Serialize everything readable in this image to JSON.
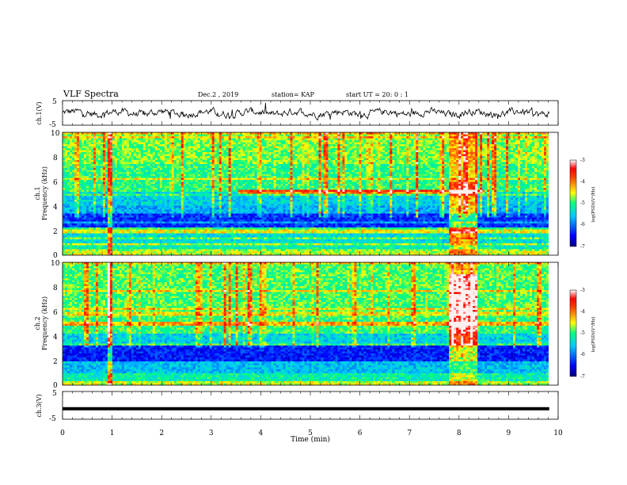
{
  "header": {
    "title": "VLF Spectra",
    "date": "Dec.2 , 2019",
    "station": "station= KAP",
    "start_ut": "start UT =  20: 0  : 1"
  },
  "chart_data": [
    {
      "type": "line",
      "ylabel": "ch.1(V)",
      "ylim": [
        -5,
        5
      ],
      "yticks": [
        "5",
        "-5"
      ],
      "xlim": [
        0,
        10
      ],
      "description_values": "noisy waveform, amplitude approx ±3 V around 0"
    },
    {
      "type": "heatmap",
      "ylabel": "ch.1",
      "ylabel2": "Frequency (kHz)",
      "ylim": [
        0,
        10
      ],
      "yticks": [
        "0",
        "2",
        "4",
        "6",
        "8",
        "10"
      ],
      "xlim": [
        0,
        10
      ],
      "colorbar": {
        "ticks": [
          "-3",
          "-4",
          "-5",
          "-6",
          "-7"
        ],
        "range": [
          -7,
          -3
        ],
        "label": "log(PSD)(V²/Hz)"
      }
    },
    {
      "type": "heatmap",
      "ylabel": "ch.2",
      "ylabel2": "Frequency (kHz)",
      "ylim": [
        0,
        10
      ],
      "yticks": [
        "0",
        "2",
        "4",
        "6",
        "8",
        "10"
      ],
      "xlim": [
        0,
        10
      ],
      "colorbar": {
        "ticks": [
          "-3",
          "-4",
          "-5",
          "-6",
          "-7"
        ],
        "range": [
          -7,
          -3
        ],
        "label": "log(PSD)(V²/Hz)"
      }
    },
    {
      "type": "line",
      "ylabel": "ch.3(V)",
      "ylim": [
        -5,
        5
      ],
      "yticks": [
        "5",
        "-5"
      ],
      "xlim": [
        0,
        10
      ],
      "constant_value": -1.2
    }
  ],
  "xaxis": {
    "label": "Time  (min)",
    "ticks": [
      "0",
      "1",
      "2",
      "3",
      "4",
      "5",
      "6",
      "7",
      "8",
      "9",
      "10"
    ]
  }
}
